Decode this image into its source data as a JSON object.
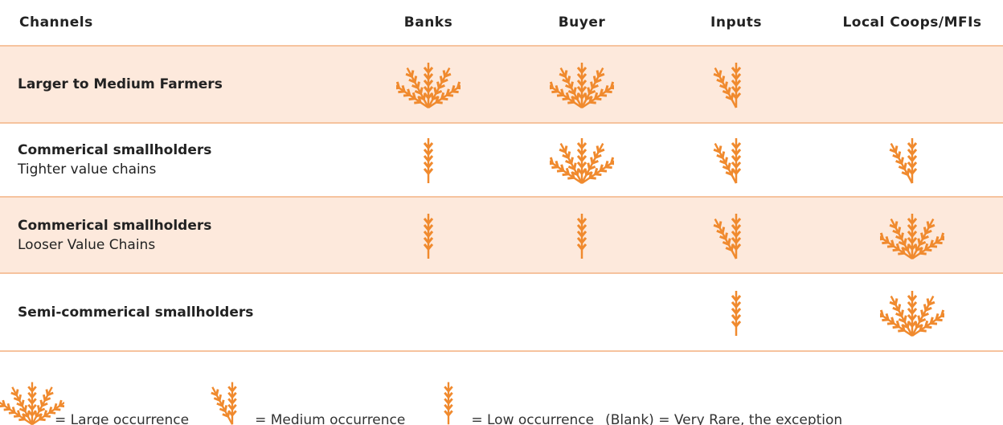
{
  "table": {
    "headers": [
      "Channels",
      "Banks",
      "Buyer",
      "Inputs",
      "Local Coops/MFIs"
    ],
    "rows": [
      {
        "label": "Larger to Medium Farmers",
        "cells": [
          3,
          3,
          2,
          null
        ]
      },
      {
        "label": "Commerical smallholders",
        "sublabel": "Tighter value chains",
        "cells": [
          1,
          3,
          2,
          2
        ]
      },
      {
        "label": "Commerical smallholders",
        "sublabel": "Looser Value Chains",
        "cells": [
          1,
          1,
          2,
          3
        ]
      },
      {
        "label": "Semi-commerical smallholders",
        "cells": [
          null,
          null,
          1,
          3
        ]
      }
    ]
  },
  "legend": {
    "items": [
      {
        "level": 3,
        "label": "= Large occurrence"
      },
      {
        "level": 2,
        "label": "= Medium occurrence"
      },
      {
        "level": 1,
        "label": "= Low occurrence"
      }
    ],
    "blank": "(Blank) = Very Rare, the exception"
  }
}
